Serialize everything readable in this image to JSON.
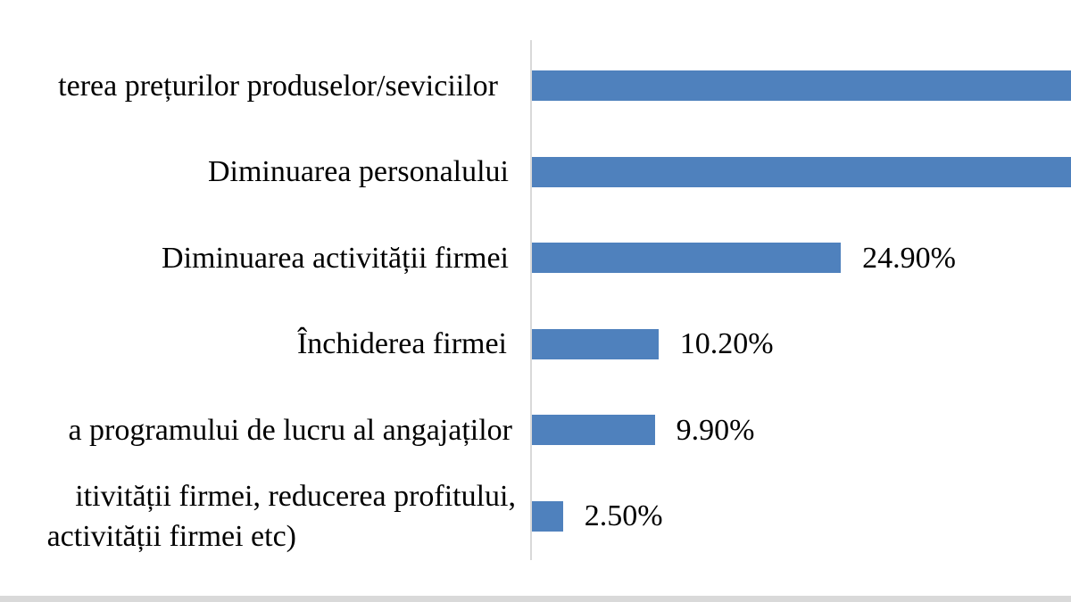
{
  "chart_data": {
    "type": "bar",
    "orientation": "horizontal",
    "title": "",
    "xlabel": "",
    "ylabel": "",
    "legend": null,
    "gridlines": false,
    "axis_note": "Value axis is not visible. The first two bars run past the right edge of the image (clipped), so their percentage labels are not visible. Several category labels are clipped at the left edge of the image.",
    "x_scale_visible_max_pct": 43.5,
    "bars": [
      {
        "label_lines": [
          "terea prețurilor produselor/seviciilor"
        ],
        "label_clipped_left": true,
        "value_pct": null,
        "value_label": "",
        "bar_clipped_right": true
      },
      {
        "label_lines": [
          "Diminuarea personalului"
        ],
        "label_clipped_left": false,
        "value_pct": null,
        "value_label": "",
        "bar_clipped_right": true
      },
      {
        "label_lines": [
          "Diminuarea activității firmei"
        ],
        "label_clipped_left": false,
        "value_pct": 24.9,
        "value_label": "24.90%",
        "bar_clipped_right": false
      },
      {
        "label_lines": [
          "Închiderea firmei"
        ],
        "label_clipped_left": false,
        "value_pct": 10.2,
        "value_label": "10.20%",
        "bar_clipped_right": false
      },
      {
        "label_lines": [
          "a programului de lucru al angajaților"
        ],
        "label_clipped_left": true,
        "value_pct": 9.9,
        "value_label": "9.90%",
        "bar_clipped_right": false
      },
      {
        "label_lines": [
          "itivității firmei, reducerea profitului,",
          "activității firmei etc)"
        ],
        "label_clipped_left": true,
        "value_pct": 2.5,
        "value_label": "2.50%",
        "bar_clipped_right": false
      }
    ],
    "colors": {
      "bar_fill": "#4f81bd",
      "axis_line": "#d9d9d9",
      "label_text": "#000000",
      "bottom_strip": "#d9d9d9",
      "background": "#ffffff"
    }
  }
}
